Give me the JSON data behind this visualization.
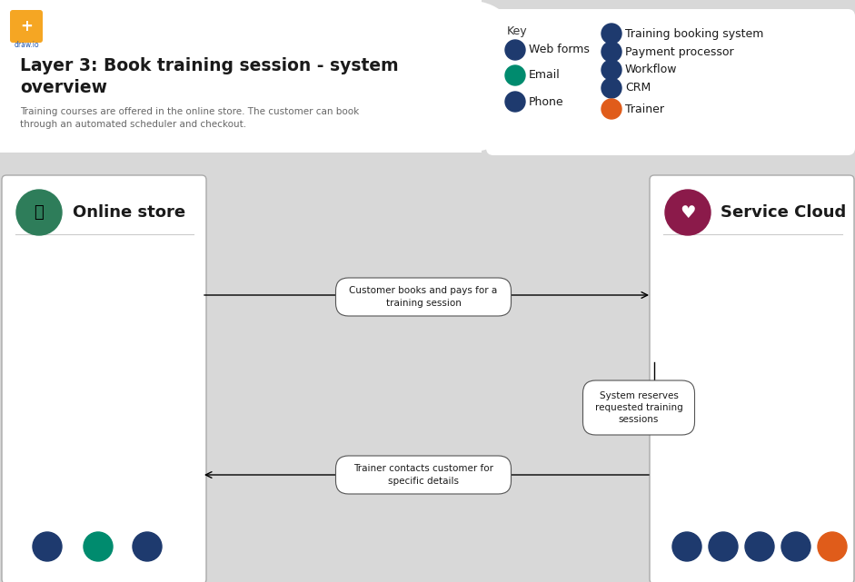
{
  "bg_color": "#d8d8d8",
  "header_bg": "#ffffff",
  "title": "Layer 3: Book training session - system\noverview",
  "subtitle": "Training courses are offered in the online store. The customer can book\nthrough an automated scheduler and checkout.",
  "key_items_left": [
    "Web forms",
    "Email",
    "Phone"
  ],
  "key_items_right": [
    "Training booking system",
    "Payment processor",
    "Workflow",
    "CRM",
    "Trainer"
  ],
  "key_icon_colors_left": [
    "#1e3a6e",
    "#008b6e",
    "#1e3a6e"
  ],
  "key_icon_colors_right": [
    "#1e3a6e",
    "#1e3a6e",
    "#1e3a6e",
    "#1e3a6e",
    "#e05c1a"
  ],
  "online_store_color": "#2e7d5a",
  "service_cloud_color": "#8b1a4a",
  "arrow1_label": "Customer books and pays for a\ntraining session",
  "arrow2_label": "System reserves\nrequested training\nsessions",
  "arrow3_label": "Trainer contacts customer for\nspecific details",
  "bottom_icons_left_colors": [
    "#1e3a6e",
    "#008b6e",
    "#1e3a6e"
  ],
  "bottom_icons_right_colors": [
    "#1e3a6e",
    "#1e3a6e",
    "#1e3a6e",
    "#1e3a6e",
    "#e05c1a"
  ],
  "figsize": [
    9.41,
    6.41
  ],
  "dpi": 100
}
